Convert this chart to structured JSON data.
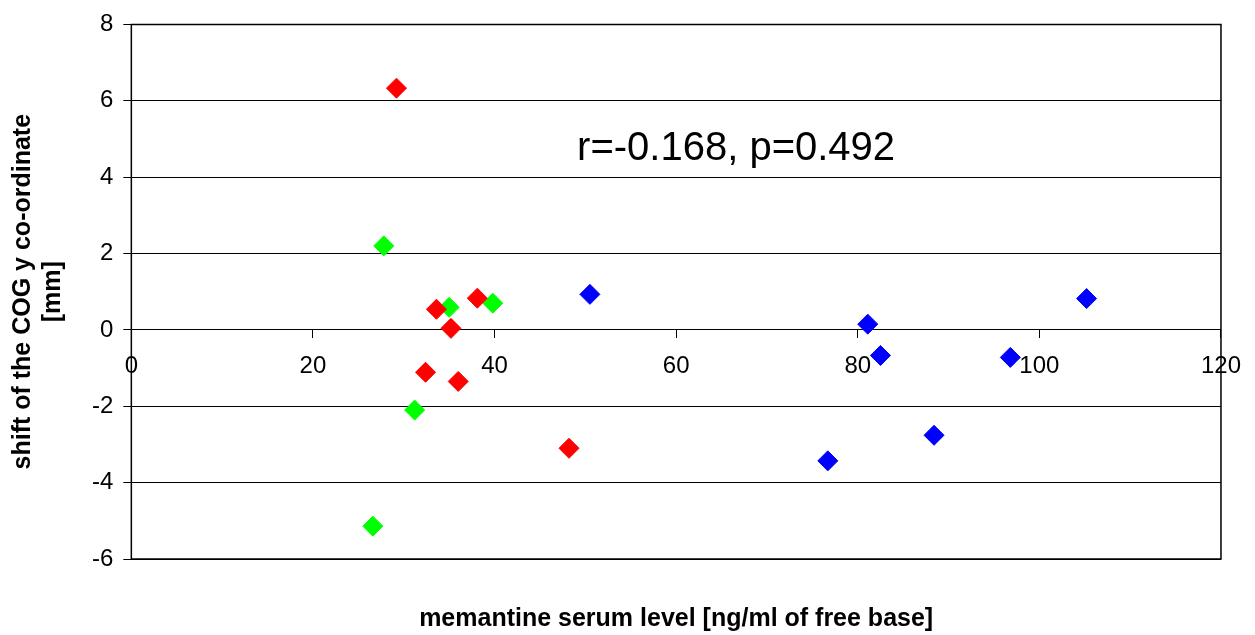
{
  "chart_data": {
    "type": "scatter",
    "xlabel": "memantine serum level [ng/ml of free base]",
    "ylabel": "shift of the COG y co-ordinate\n[mm]",
    "annotations": [
      "r=-0.168, p=0.492"
    ],
    "series": [
      {
        "color": "#ff0000",
        "x": [
          29.2,
          33.6,
          38.1,
          35.2,
          32.4,
          36.0,
          48.2
        ],
        "values": [
          6.33,
          0.54,
          0.83,
          0.04,
          -1.11,
          -1.35,
          -3.1
        ]
      },
      {
        "color": "#00ff00",
        "x": [
          27.8,
          35.0,
          39.8,
          31.2,
          26.6
        ],
        "values": [
          2.2,
          0.59,
          0.7,
          -2.1,
          -5.14
        ]
      },
      {
        "color": "#0000ff",
        "x": [
          50.5,
          81.1,
          82.5,
          96.8,
          105.2,
          76.7,
          88.4
        ],
        "values": [
          0.93,
          0.15,
          -0.67,
          -0.72,
          0.82,
          -3.43,
          -2.76
        ]
      }
    ],
    "xlim": [
      0,
      120
    ],
    "xticks": [
      0,
      20,
      40,
      60,
      80,
      100,
      120
    ],
    "ylim": [
      -6,
      8
    ],
    "yticks": [
      -6,
      -4,
      -2,
      0,
      2,
      4,
      6,
      8
    ],
    "grid": "y",
    "legend": false,
    "marker": "diamond"
  }
}
